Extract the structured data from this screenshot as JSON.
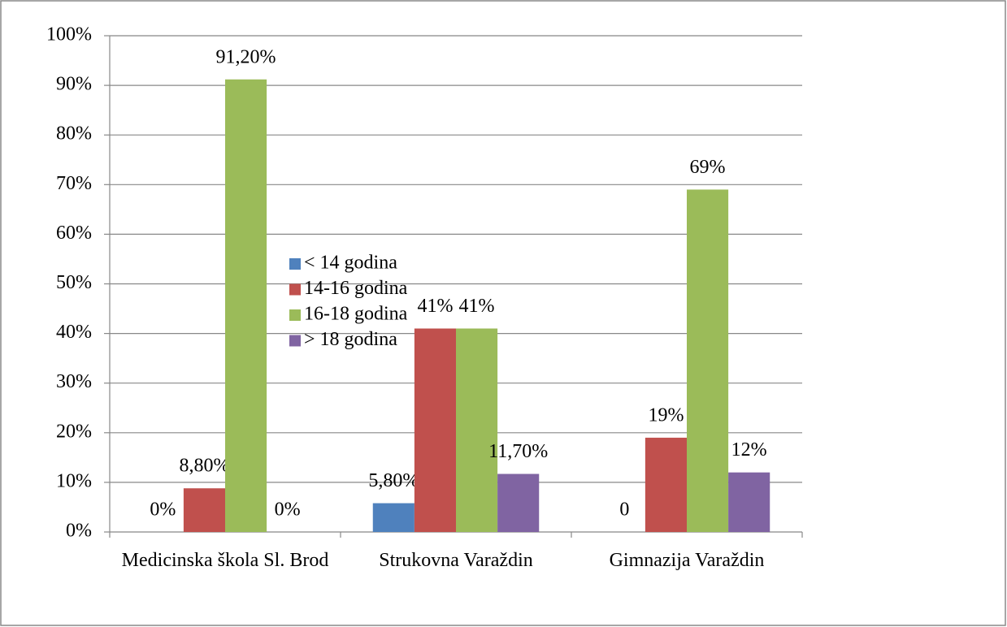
{
  "chart_data": {
    "type": "bar",
    "categories": [
      "Medicinska škola Sl. Brod",
      "Strukovna Varaždin",
      "Gimnazija Varaždin"
    ],
    "series": [
      {
        "name": "< 14 godina",
        "color": "#4f81bd",
        "values": [
          0,
          5.8,
          0
        ],
        "value_labels": [
          "0%",
          "5,80%",
          "0"
        ]
      },
      {
        "name": "14-16 godina",
        "color": "#c0504d",
        "values": [
          8.8,
          41,
          19
        ],
        "value_labels": [
          "8,80%",
          "41%",
          "19%"
        ]
      },
      {
        "name": "16-18 godina",
        "color": "#9bbb59",
        "values": [
          91.2,
          41,
          69
        ],
        "value_labels": [
          "91,20%",
          "41%",
          "69%"
        ]
      },
      {
        "name": "> 18 godina",
        "color": "#8064a2",
        "values": [
          0,
          11.7,
          12
        ],
        "value_labels": [
          "0%",
          "11,70%",
          "12%"
        ]
      }
    ],
    "ylim": [
      0,
      100
    ],
    "yticks": [
      {
        "value": 0,
        "label": "0%"
      },
      {
        "value": 10,
        "label": "10%"
      },
      {
        "value": 20,
        "label": "20%"
      },
      {
        "value": 30,
        "label": "30%"
      },
      {
        "value": 40,
        "label": "40%"
      },
      {
        "value": 50,
        "label": "50%"
      },
      {
        "value": 60,
        "label": "60%"
      },
      {
        "value": 70,
        "label": "70%"
      },
      {
        "value": 80,
        "label": "80%"
      },
      {
        "value": 90,
        "label": "90%"
      },
      {
        "value": 100,
        "label": "100%"
      }
    ],
    "grid": true,
    "legend": "right"
  }
}
